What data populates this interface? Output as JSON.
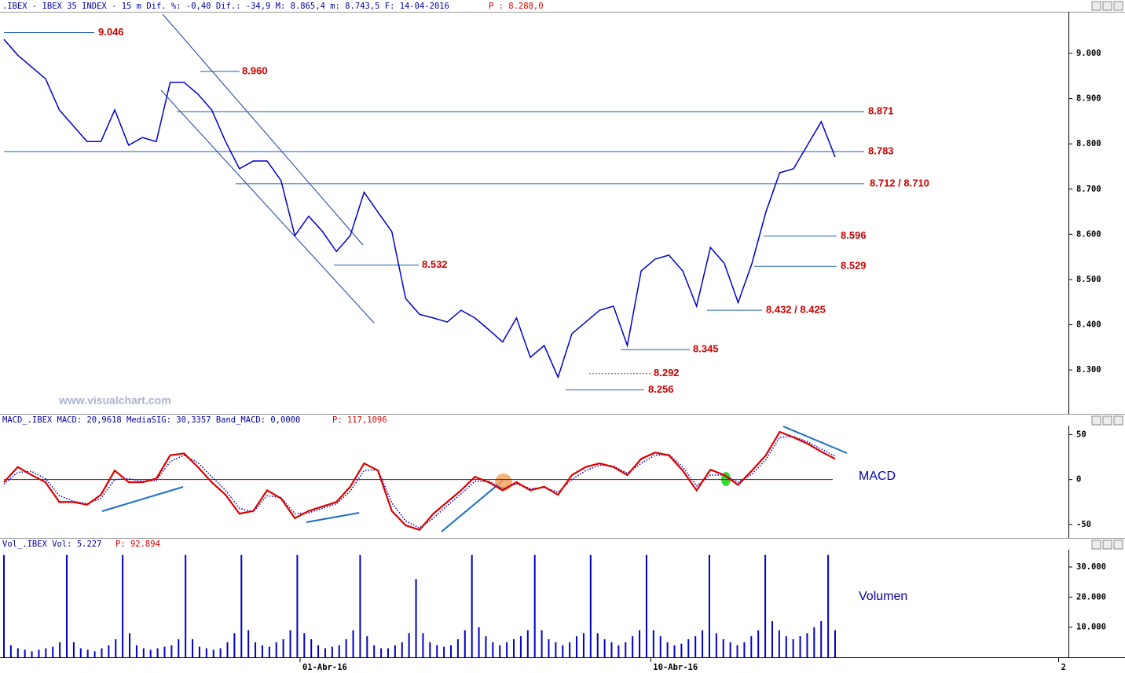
{
  "chart_data": [
    {
      "type": "line",
      "title": ".IBEX - IBEX 35 INDEX -  15 m Dif. %: -0,40 Dif.: -34,9 M: 8.865,4 m: 8.743,5 F: 14-04-2016",
      "title_price": "P : 8.288,0",
      "watermark": "www.visualchart.com",
      "color": "#0000cc",
      "values": [
        9031,
        8996,
        8970,
        8944,
        8875,
        8840,
        8805,
        8805,
        8875,
        8797,
        8814,
        8805,
        8936,
        8936,
        8910,
        8875,
        8805,
        8745,
        8762,
        8762,
        8719,
        8597,
        8640,
        8606,
        8562,
        8597,
        8693,
        8649,
        8606,
        8458,
        8423,
        8415,
        8406,
        8432,
        8415,
        8389,
        8362,
        8415,
        8328,
        8354,
        8284,
        8380,
        8406,
        8432,
        8441,
        8354,
        8519,
        8545,
        8554,
        8519,
        8441,
        8571,
        8536,
        8449,
        8536,
        8649,
        8736,
        8745,
        8797,
        8849,
        8771
      ],
      "xlim": [
        0,
        60
      ],
      "ylim": [
        8203,
        9092
      ],
      "yticks": [
        {
          "value": 8300,
          "label": "8.300"
        },
        {
          "value": 8400,
          "label": "8.400"
        },
        {
          "value": 8500,
          "label": "8.500"
        },
        {
          "value": 8600,
          "label": "8.600"
        },
        {
          "value": 8700,
          "label": "8.700"
        },
        {
          "value": 8800,
          "label": "8.800"
        },
        {
          "value": 8900,
          "label": "8.900"
        },
        {
          "value": 9000,
          "label": "9.000"
        }
      ],
      "levels": [
        {
          "values": [
            9046
          ],
          "label": "9.046"
        },
        {
          "values": [
            8960
          ],
          "label": "8.960"
        },
        {
          "values": [
            8871
          ],
          "label": "8.871"
        },
        {
          "values": [
            8783
          ],
          "label": "8.783"
        },
        {
          "values": [
            8712,
            8710
          ],
          "label": "8.712 / 8.710"
        },
        {
          "values": [
            8596
          ],
          "label": "8.596"
        },
        {
          "values": [
            8529
          ],
          "label": "8.529"
        },
        {
          "values": [
            8532
          ],
          "label": "8.532"
        },
        {
          "values": [
            8432,
            8425
          ],
          "label": "8.432 / 8.425"
        },
        {
          "values": [
            8345
          ],
          "label": "8.345"
        },
        {
          "values": [
            8292
          ],
          "label": "8.292"
        },
        {
          "values": [
            8256
          ],
          "label": "8.256"
        }
      ]
    },
    {
      "type": "line",
      "title": "MACD_.IBEX MACD: 20,9618 MediaSIG: 30,3357 Band_MACD: 0,0000",
      "title_price": "P: 117,1096",
      "annotation": "MACD",
      "xlim": [
        0,
        60
      ],
      "ylim": [
        -65,
        60
      ],
      "yticks": [
        -50,
        0,
        50
      ],
      "series": [
        {
          "name": "MACD",
          "color": "#dd0000",
          "values": [
            -3,
            14,
            5,
            -3,
            -25,
            -25,
            -28,
            -17,
            10,
            -3,
            -3,
            1,
            27,
            29,
            14,
            -3,
            -17,
            -38,
            -35,
            -12,
            -21,
            -43,
            -35,
            -30,
            -25,
            -8,
            18,
            10,
            -35,
            -51,
            -56,
            -38,
            -25,
            -12,
            3,
            -3,
            -12,
            -3,
            -12,
            -8,
            -17,
            5,
            14,
            18,
            14,
            5,
            23,
            30,
            27,
            10,
            -12,
            11,
            5,
            -6,
            10,
            27,
            53,
            47,
            40,
            31,
            23
          ]
        },
        {
          "name": "MediaSIG",
          "color": "#0000cc",
          "values": [
            -5,
            8,
            9,
            1,
            -18,
            -24,
            -27,
            -21,
            0,
            1,
            -2,
            -1,
            20,
            27,
            19,
            3,
            -12,
            -32,
            -36,
            -18,
            -20,
            -38,
            -37,
            -32,
            -27,
            -13,
            10,
            11,
            -26,
            -46,
            -54,
            -43,
            -29,
            -16,
            -2,
            -2,
            -10,
            -5,
            -10,
            -9,
            -14,
            0,
            10,
            16,
            15,
            7,
            18,
            27,
            28,
            14,
            -7,
            5,
            5,
            -3,
            6,
            22,
            47,
            48,
            42,
            34,
            26
          ]
        }
      ]
    },
    {
      "type": "bar",
      "title": "Vol_.IBEX Vol: 5.227",
      "title_price": "P: 92.894",
      "annotation": "Volumen",
      "color": "#0000cc",
      "values": [
        34000,
        4000,
        3000,
        2500,
        2000,
        2500,
        3000,
        3500,
        5000,
        34000,
        5000,
        3000,
        2500,
        2000,
        3000,
        4000,
        6000,
        34000,
        8000,
        4000,
        3000,
        2500,
        3000,
        3500,
        4000,
        6000,
        34000,
        6000,
        3500,
        3000,
        2500,
        3000,
        5000,
        8000,
        34000,
        9000,
        5000,
        4000,
        3500,
        5000,
        6000,
        9000,
        34000,
        8000,
        6000,
        4000,
        3000,
        3500,
        4000,
        6000,
        9000,
        34000,
        7000,
        4000,
        3000,
        3000,
        4000,
        5000,
        8000,
        26000,
        8000,
        5000,
        4000,
        3500,
        4000,
        6000,
        9000,
        34000,
        10000,
        7000,
        5000,
        4000,
        5000,
        6000,
        7000,
        9000,
        34000,
        9000,
        6000,
        5000,
        4000,
        5000,
        7000,
        8000,
        34000,
        8000,
        6000,
        5000,
        4000,
        5000,
        7000,
        9000,
        34000,
        9000,
        7000,
        5000,
        4000,
        4500,
        6000,
        7000,
        9000,
        34000,
        8000,
        6000,
        5000,
        4000,
        5000,
        7000,
        9000,
        34000,
        12000,
        9000,
        7000,
        6000,
        7000,
        8000,
        10000,
        12000,
        34000,
        9000
      ],
      "xlim": [
        0,
        119
      ],
      "xticks": [
        {
          "value": 42.4,
          "label": "01-Abr-16"
        },
        {
          "value": 92.6,
          "label": "10-Abr-16"
        },
        {
          "value": 151,
          "label": "2"
        }
      ],
      "ylim": [
        0,
        36000
      ],
      "yticks": [
        {
          "value": 10000,
          "label": "10.000"
        },
        {
          "value": 20000,
          "label": "20.000"
        },
        {
          "value": 30000,
          "label": "30.000"
        }
      ]
    }
  ]
}
